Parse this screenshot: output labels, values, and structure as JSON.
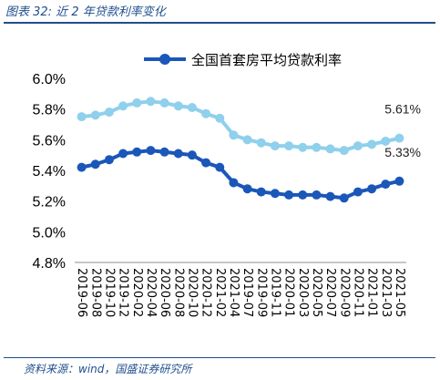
{
  "figure": {
    "title": "图表 32:  近 2 年贷款利率变化",
    "source": "资料来源：wind，国盛证券研究所"
  },
  "chart_data": {
    "type": "line",
    "title": "",
    "xlabel": "",
    "ylabel": "",
    "ylim": [
      4.8,
      6.0
    ],
    "y_ticks": [
      "4.8%",
      "5.0%",
      "5.2%",
      "5.4%",
      "5.6%",
      "5.8%",
      "6.0%"
    ],
    "y_tick_values": [
      4.8,
      5.0,
      5.2,
      5.4,
      5.6,
      5.8,
      6.0
    ],
    "grid": false,
    "legend_position": "top",
    "categories": [
      "2019-06",
      "2019-07",
      "2019-08",
      "2019-09",
      "2019-10",
      "2019-11",
      "2019-12",
      "2020-01",
      "2020-02",
      "2020-03",
      "2020-04",
      "2020-05",
      "2020-06",
      "2020-07",
      "2020-08",
      "2020-09",
      "2020-10",
      "2020-11",
      "2020-12",
      "2021-01",
      "2021-02",
      "2021-03",
      "2021-04",
      "2021-05"
    ],
    "x_tick_labels": [
      "2019-06",
      "2019-08",
      "2019-10",
      "2019-12",
      "2020-02",
      "2020-04",
      "2020-06",
      "2020-08",
      "2020-10",
      "2020-12",
      "2021-02",
      "2021-04",
      "2019-07",
      "2019-09",
      "2019-11",
      "2020-01",
      "2020-03",
      "2020-05",
      "2020-07",
      "2020-09",
      "2020-11",
      "2021-01",
      "2021-03",
      "2021-05"
    ],
    "series": [
      {
        "name": "全国首套房平均贷款利率",
        "color": "#1a57b8",
        "values": [
          5.42,
          5.44,
          5.47,
          5.51,
          5.52,
          5.53,
          5.52,
          5.51,
          5.5,
          5.45,
          5.42,
          5.32,
          5.28,
          5.26,
          5.25,
          5.24,
          5.24,
          5.24,
          5.23,
          5.22,
          5.26,
          5.28,
          5.31,
          5.33
        ],
        "end_label": "5.33%"
      },
      {
        "name": "",
        "color": "#8fd0ec",
        "values": [
          5.75,
          5.76,
          5.78,
          5.82,
          5.84,
          5.85,
          5.84,
          5.82,
          5.81,
          5.77,
          5.74,
          5.63,
          5.6,
          5.58,
          5.56,
          5.56,
          5.55,
          5.55,
          5.54,
          5.53,
          5.56,
          5.57,
          5.59,
          5.61
        ],
        "end_label": "5.61%"
      }
    ]
  }
}
